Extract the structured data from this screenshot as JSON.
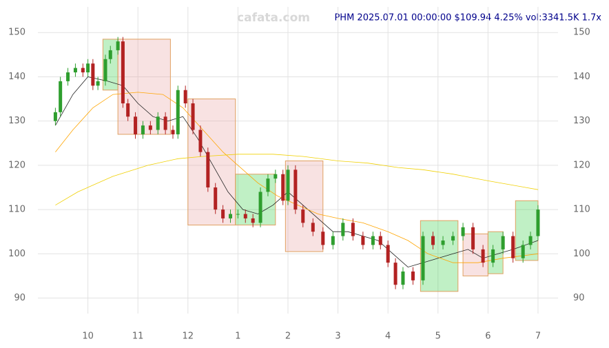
{
  "chart_data": {
    "type": "candlestick",
    "title": "PHM 2025.07.01 00:00:00 $109.94 4.25% vol:3341.5K 1.7x",
    "watermark": "cafata.com",
    "x": [
      9.35,
      9.45,
      9.6,
      9.75,
      9.9,
      10.0,
      10.1,
      10.2,
      10.35,
      10.45,
      10.6,
      10.7,
      10.8,
      10.95,
      11.1,
      11.25,
      11.4,
      11.55,
      11.7,
      11.8,
      11.95,
      12.1,
      12.25,
      12.4,
      12.55,
      12.7,
      12.85,
      13.0,
      13.15,
      13.3,
      13.45,
      13.6,
      13.75,
      13.9,
      14.0,
      14.15,
      14.3,
      14.5,
      14.7,
      14.9,
      15.1,
      15.3,
      15.5,
      15.7,
      15.85,
      16.0,
      16.15,
      16.3,
      16.5,
      16.7,
      16.9,
      17.1,
      17.3,
      17.5,
      17.7,
      17.9,
      18.1,
      18.3,
      18.5,
      18.7,
      18.85,
      19.0
    ],
    "open": [
      130,
      132,
      139,
      141,
      142,
      141,
      143,
      138,
      139,
      144,
      146,
      148,
      134,
      131,
      127,
      129,
      128,
      131,
      128,
      127,
      137,
      134,
      128,
      123,
      115,
      110,
      108,
      109,
      109,
      108,
      107,
      114,
      117,
      118,
      112,
      119,
      110,
      107,
      105,
      102,
      104,
      107,
      104,
      102,
      104,
      102,
      98,
      93,
      96,
      94,
      104,
      102,
      103,
      104,
      106,
      101,
      98,
      101,
      104,
      99,
      102,
      104
    ],
    "high": [
      133,
      140,
      142,
      143,
      143,
      144,
      144,
      140,
      145,
      147,
      149,
      149,
      135,
      132,
      130,
      130,
      132,
      132,
      129,
      138,
      138,
      135,
      129,
      124,
      116,
      111,
      110,
      110,
      110,
      109,
      115,
      118,
      119,
      119,
      120,
      120,
      111,
      108,
      106,
      105,
      108,
      108,
      105,
      105,
      105,
      103,
      99,
      97,
      97,
      105,
      105,
      104,
      105,
      107,
      107,
      102,
      102,
      105,
      105,
      103,
      105,
      111
    ],
    "low": [
      129,
      131,
      138,
      140,
      140,
      140,
      137,
      137,
      138,
      143,
      145,
      133,
      130,
      126,
      126,
      127,
      127,
      127,
      126,
      126,
      133,
      127,
      122,
      114,
      109,
      107,
      107,
      108,
      107,
      106,
      106,
      113,
      116,
      111,
      111,
      109,
      106,
      104,
      101,
      101,
      103,
      103,
      101,
      101,
      101,
      97,
      92,
      92,
      93,
      93,
      101,
      101,
      102,
      103,
      100,
      97,
      97,
      100,
      98,
      98,
      101,
      103
    ],
    "close": [
      132,
      139,
      141,
      142,
      141,
      143,
      138,
      139,
      144,
      146,
      148,
      134,
      131,
      127,
      129,
      128,
      131,
      128,
      127,
      137,
      134,
      128,
      123,
      115,
      110,
      108,
      109,
      109,
      108,
      107,
      114,
      117,
      118,
      112,
      119,
      110,
      107,
      105,
      102,
      104,
      107,
      104,
      102,
      104,
      102,
      98,
      93,
      96,
      94,
      104,
      102,
      103,
      104,
      106,
      101,
      98,
      101,
      104,
      99,
      102,
      104,
      110
    ],
    "up_color": "#2e9e2e",
    "down_color": "#b22222",
    "lines": [
      {
        "color": "#222222",
        "x": [
          9.35,
          9.7,
          10.0,
          10.4,
          10.7,
          11.0,
          11.3,
          11.6,
          11.9,
          12.2,
          12.5,
          12.8,
          13.1,
          13.4,
          13.7,
          14.0,
          14.3,
          14.6,
          14.9,
          15.2,
          15.5,
          15.8,
          16.1,
          16.4,
          16.7,
          17.0,
          17.3,
          17.6,
          17.9,
          18.2,
          18.5,
          19.0
        ],
        "values": [
          129,
          136,
          140,
          139,
          138,
          134,
          131,
          130,
          131,
          126,
          120,
          114,
          110,
          109,
          111,
          114,
          111,
          108,
          105,
          105,
          104,
          103,
          100,
          97,
          98,
          99,
          100,
          101,
          99,
          100,
          101,
          103
        ]
      },
      {
        "color": "#ffa500",
        "x": [
          9.35,
          9.7,
          10.1,
          10.5,
          11.0,
          11.5,
          11.9,
          12.3,
          12.7,
          13.0,
          13.4,
          13.8,
          14.2,
          14.6,
          15.0,
          15.5,
          16.0,
          16.4,
          16.8,
          17.3,
          17.8,
          18.3,
          19.0
        ],
        "values": [
          123,
          128,
          133,
          136,
          136.5,
          136,
          133,
          128,
          123,
          120,
          116,
          113,
          111,
          109,
          108,
          107,
          105,
          103,
          100,
          98,
          98,
          99,
          100
        ]
      },
      {
        "color": "#f0d000",
        "x": [
          9.35,
          9.8,
          10.5,
          11.2,
          11.8,
          12.3,
          13.0,
          13.7,
          14.3,
          15.0,
          15.6,
          16.2,
          16.7,
          17.3,
          18.0,
          19.0
        ],
        "values": [
          111,
          114,
          117.5,
          120,
          121.5,
          122,
          122.5,
          122.5,
          122,
          121,
          120.5,
          119.5,
          119,
          118,
          116.5,
          114.5
        ]
      }
    ],
    "boxes": [
      {
        "x": [
          10.3,
          10.6
        ],
        "y": [
          137,
          148.5
        ],
        "color": "#2ecc40"
      },
      {
        "x": [
          10.6,
          11.65
        ],
        "y": [
          127,
          148.5
        ],
        "color": "#e8a0a0"
      },
      {
        "x": [
          12.0,
          12.95
        ],
        "y": [
          106.5,
          135
        ],
        "color": "#e8a0a0"
      },
      {
        "x": [
          12.95,
          13.75
        ],
        "y": [
          106.5,
          118
        ],
        "color": "#2ecc40"
      },
      {
        "x": [
          13.95,
          14.7
        ],
        "y": [
          100.5,
          121
        ],
        "color": "#e8a0a0"
      },
      {
        "x": [
          16.65,
          17.4
        ],
        "y": [
          91.5,
          107.5
        ],
        "color": "#2ecc40"
      },
      {
        "x": [
          17.5,
          18.0
        ],
        "y": [
          95,
          104.5
        ],
        "color": "#e8a0a0"
      },
      {
        "x": [
          18.0,
          18.3
        ],
        "y": [
          95.5,
          105
        ],
        "color": "#2ecc40"
      },
      {
        "x": [
          18.55,
          19.0
        ],
        "y": [
          98.5,
          112
        ],
        "color": "#2ecc40"
      }
    ],
    "xlim": [
      9.0,
      19.4
    ],
    "ylim": [
      86.5,
      155.8
    ],
    "xticks": [
      10,
      11,
      12,
      {
        "value": 13,
        "label": "1"
      },
      {
        "value": 14,
        "label": "2"
      },
      {
        "value": 15,
        "label": "3"
      },
      {
        "value": 16,
        "label": "4"
      },
      {
        "value": 17,
        "label": "5"
      },
      {
        "value": 18,
        "label": "6"
      },
      {
        "value": 19,
        "label": "7"
      }
    ],
    "yticks": [
      90,
      100,
      110,
      120,
      130,
      140,
      150
    ],
    "grid": true
  }
}
